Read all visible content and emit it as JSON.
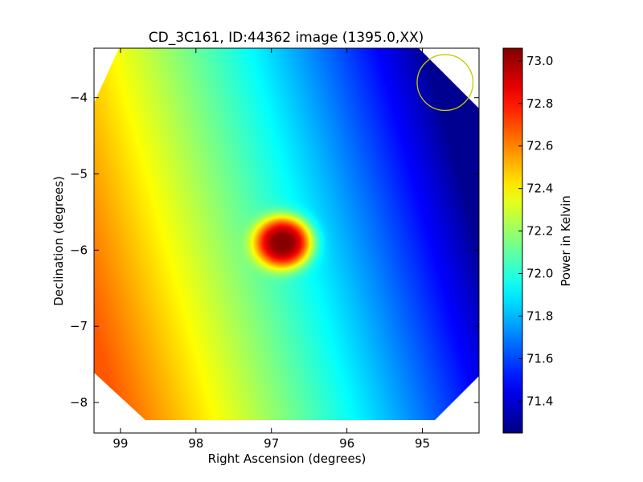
{
  "chart_data": {
    "type": "heatmap",
    "title": "CD_3C161, ID:44362 image (1395.0,XX)",
    "xlabel": "Right Ascension (degrees)",
    "ylabel": "Declination (degrees)",
    "xlim": [
      99.35,
      94.25
    ],
    "ylim": [
      -8.4,
      -3.35
    ],
    "x_axis_direction": "decreasing",
    "xticks": [
      99,
      98,
      97,
      96,
      95
    ],
    "xtick_labels": [
      "99",
      "98",
      "97",
      "96",
      "95"
    ],
    "yticks": [
      -4,
      -5,
      -6,
      -7,
      -8
    ],
    "ytick_labels": [
      "−4",
      "−5",
      "−6",
      "−7",
      "−8"
    ],
    "colormap": "jet",
    "colorbar": {
      "label": "Power in Kelvin",
      "vmin": 71.25,
      "vmax": 73.06,
      "ticks": [
        71.4,
        71.6,
        71.8,
        72.0,
        72.2,
        72.4,
        72.6,
        72.8,
        73.0
      ],
      "tick_labels": [
        "71.4",
        "71.6",
        "71.8",
        "72.0",
        "72.2",
        "72.4",
        "72.6",
        "72.8",
        "73.0"
      ]
    },
    "field": {
      "gradient_low_corner": {
        "ra": 94.3,
        "dec": -5.8,
        "value": 71.28
      },
      "gradient_high_corner": {
        "ra": 99.3,
        "dec": -7.2,
        "value": 72.68
      },
      "hotspot": {
        "ra": 96.85,
        "dec": -5.9,
        "peak_value": 73.05
      }
    },
    "beam_circle": {
      "ra": 94.7,
      "dec": -3.8,
      "radius_deg": 0.37,
      "color": "#c8c800"
    },
    "grid": false
  }
}
